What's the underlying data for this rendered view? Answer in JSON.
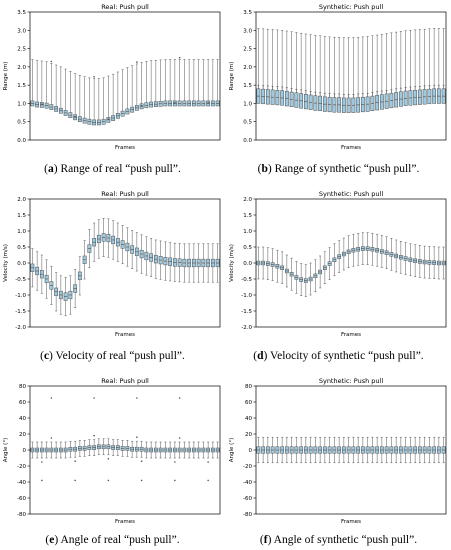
{
  "captions": [
    {
      "letter": "a",
      "text": " Range of real “push pull”."
    },
    {
      "letter": "b",
      "text": " Range of synthetic “push pull”."
    },
    {
      "letter": "c",
      "text": " Velocity of real “push pull”."
    },
    {
      "letter": "d",
      "text": " Velocity of synthetic “push pull”."
    },
    {
      "letter": "e",
      "text": " Angle of real “push pull”."
    },
    {
      "letter": "f",
      "text": " Angle of synthetic “push pull”."
    }
  ],
  "colors": {
    "box_fill": "#9ecae1",
    "box_edge": "#4d4d4d",
    "whisker": "#555555",
    "flier": "#555555"
  },
  "chart_data": [
    {
      "type": "box",
      "title": "Real: Push pull",
      "xlabel": "Frames",
      "ylabel": "Range (m)",
      "ylim": [
        0,
        3.5
      ],
      "yticks": [
        0.0,
        0.5,
        1.0,
        1.5,
        2.0,
        2.5,
        3.0,
        3.5
      ],
      "n_frames": 40,
      "median": [
        1.0,
        0.97,
        0.96,
        0.94,
        0.9,
        0.85,
        0.8,
        0.74,
        0.68,
        0.62,
        0.57,
        0.53,
        0.5,
        0.48,
        0.48,
        0.5,
        0.55,
        0.6,
        0.66,
        0.72,
        0.78,
        0.83,
        0.88,
        0.92,
        0.95,
        0.97,
        0.98,
        0.99,
        1.0,
        1.0,
        1.0,
        1.0,
        1.0,
        1.0,
        1.0,
        1.0,
        1.0,
        1.0,
        1.0,
        1.0
      ],
      "iqr_half": 0.07,
      "whisker_low": 0.05,
      "whisker_high": 1.2,
      "fliers_low": [
        0.02
      ],
      "fliers_high": [
        1.25
      ]
    },
    {
      "type": "box",
      "title": "Synthetic: Push pull",
      "xlabel": "Frames",
      "ylabel": "Range (m)",
      "ylim": [
        0,
        3.5
      ],
      "yticks": [
        0.0,
        0.5,
        1.0,
        1.5,
        2.0,
        2.5,
        3.0,
        3.5
      ],
      "n_frames": 40,
      "median": [
        1.2,
        1.19,
        1.18,
        1.17,
        1.16,
        1.15,
        1.13,
        1.11,
        1.09,
        1.07,
        1.05,
        1.03,
        1.01,
        1.0,
        0.98,
        0.97,
        0.96,
        0.96,
        0.95,
        0.95,
        0.95,
        0.96,
        0.97,
        0.98,
        1.0,
        1.02,
        1.04,
        1.06,
        1.08,
        1.1,
        1.12,
        1.14,
        1.15,
        1.16,
        1.17,
        1.18,
        1.19,
        1.2,
        1.2,
        1.2
      ],
      "iqr_half": 0.2,
      "whisker_low": 0.3,
      "whisker_high": 1.85,
      "fliers_low": [],
      "fliers_high": []
    },
    {
      "type": "box",
      "title": "Real: Push pull",
      "xlabel": "Frames",
      "ylabel": "Velocity (m/s)",
      "ylim": [
        -2.0,
        2.0
      ],
      "yticks": [
        -2.0,
        -1.5,
        -1.0,
        -0.5,
        0.0,
        0.5,
        1.0,
        1.5,
        2.0
      ],
      "n_frames": 40,
      "median": [
        -0.15,
        -0.25,
        -0.35,
        -0.5,
        -0.7,
        -0.9,
        -1.0,
        -1.05,
        -1.0,
        -0.8,
        -0.4,
        0.1,
        0.45,
        0.65,
        0.75,
        0.8,
        0.78,
        0.72,
        0.65,
        0.58,
        0.5,
        0.42,
        0.35,
        0.28,
        0.22,
        0.17,
        0.12,
        0.09,
        0.06,
        0.04,
        0.02,
        0.01,
        0.0,
        0.0,
        0.0,
        0.0,
        0.0,
        0.0,
        0.0,
        0.0
      ],
      "iqr_half": 0.12,
      "whisker_low": -0.6,
      "whisker_high": 0.6,
      "fliers_low": [],
      "fliers_high": []
    },
    {
      "type": "box",
      "title": "Synthetic: Push pull",
      "xlabel": "Frames",
      "ylabel": "Velocity (m/s)",
      "ylim": [
        -2.0,
        2.0
      ],
      "yticks": [
        -2.0,
        -1.5,
        -1.0,
        -0.5,
        0.0,
        0.5,
        1.0,
        1.5,
        2.0
      ],
      "n_frames": 40,
      "median": [
        0.0,
        0.0,
        -0.02,
        -0.05,
        -0.1,
        -0.15,
        -0.25,
        -0.35,
        -0.45,
        -0.52,
        -0.55,
        -0.5,
        -0.4,
        -0.28,
        -0.15,
        -0.02,
        0.1,
        0.2,
        0.28,
        0.35,
        0.4,
        0.43,
        0.45,
        0.45,
        0.43,
        0.4,
        0.36,
        0.32,
        0.27,
        0.22,
        0.18,
        0.14,
        0.1,
        0.07,
        0.05,
        0.03,
        0.02,
        0.01,
        0.0,
        0.0
      ],
      "iqr_half": 0.06,
      "whisker_low": -0.5,
      "whisker_high": 0.5,
      "fliers_low": [],
      "fliers_high": []
    },
    {
      "type": "box",
      "title": "Real: Push pull",
      "xlabel": "Frames",
      "ylabel": "Angle (°)",
      "ylim": [
        -80,
        80
      ],
      "yticks": [
        -80,
        -60,
        -40,
        -20,
        0,
        20,
        40,
        60,
        80
      ],
      "n_frames": 40,
      "median": [
        0,
        0,
        0,
        0,
        0,
        0,
        0,
        0,
        1,
        1,
        2,
        2,
        3,
        3,
        4,
        4,
        4,
        3,
        3,
        2,
        2,
        1,
        1,
        1,
        0,
        0,
        0,
        0,
        0,
        0,
        0,
        0,
        0,
        0,
        0,
        0,
        0,
        0,
        0,
        0
      ],
      "iqr_half": 2.5,
      "whisker_low": -10,
      "whisker_high": 10,
      "fliers_low": [
        -38,
        -15
      ],
      "fliers_high": [
        15,
        65
      ]
    },
    {
      "type": "box",
      "title": "Synthetic: Push pull",
      "xlabel": "Frames",
      "ylabel": "Angle (°)",
      "ylim": [
        -80,
        80
      ],
      "yticks": [
        -80,
        -60,
        -40,
        -20,
        0,
        20,
        40,
        60,
        80
      ],
      "n_frames": 40,
      "median": [
        0,
        0,
        0,
        0,
        0,
        0,
        0,
        0,
        0,
        0,
        0,
        0,
        0,
        0,
        0,
        0,
        0,
        0,
        0,
        0,
        0,
        0,
        0,
        0,
        0,
        0,
        0,
        0,
        0,
        0,
        0,
        0,
        0,
        0,
        0,
        0,
        0,
        0,
        0,
        0
      ],
      "iqr_half": 4,
      "whisker_low": -16,
      "whisker_high": 16,
      "fliers_low": [],
      "fliers_high": []
    }
  ]
}
